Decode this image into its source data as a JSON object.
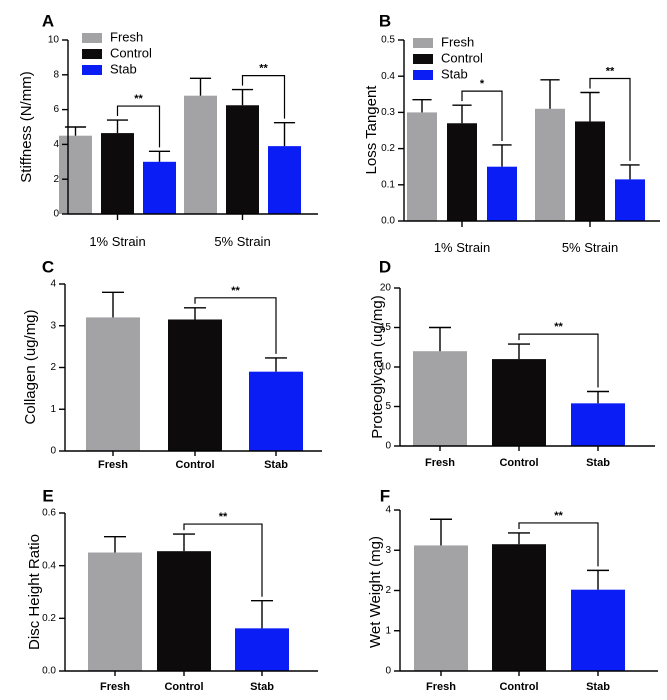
{
  "colors": {
    "fresh": "#a3a3a6",
    "control": "#0d0b0b",
    "stab": "#0a1df5"
  },
  "chart_data": [
    {
      "panel": "A",
      "type": "bar",
      "ylabel": "Stiffness (N/mm)",
      "xlabel": "",
      "ylim": [
        0,
        10
      ],
      "yticks": [
        0,
        2,
        4,
        6,
        8,
        10
      ],
      "categories": [
        "1% Strain",
        "5% Strain"
      ],
      "series": [
        {
          "name": "Fresh",
          "color_key": "fresh",
          "values": [
            4.5,
            6.8
          ],
          "errors": [
            0.5,
            1.0
          ]
        },
        {
          "name": "Control",
          "color_key": "control",
          "values": [
            4.65,
            6.25
          ],
          "errors": [
            0.75,
            0.9
          ]
        },
        {
          "name": "Stab",
          "color_key": "stab",
          "values": [
            3.0,
            3.9
          ],
          "errors": [
            0.6,
            1.35
          ]
        }
      ],
      "legend": [
        "Fresh",
        "Control",
        "Stab"
      ],
      "significance": [
        {
          "category": 0,
          "from": "Control",
          "to": "Stab",
          "label": "**"
        },
        {
          "category": 1,
          "from": "Control",
          "to": "Stab",
          "label": "**"
        }
      ]
    },
    {
      "panel": "B",
      "type": "bar",
      "ylabel": "Loss Tangent",
      "xlabel": "",
      "ylim": [
        0,
        0.5
      ],
      "yticks": [
        0.0,
        0.1,
        0.2,
        0.3,
        0.4,
        0.5
      ],
      "yticklabels": [
        "0.0",
        "0.1",
        "0.2",
        "0.3",
        "0.4",
        "0.5"
      ],
      "categories": [
        "1% Strain",
        "5% Strain"
      ],
      "series": [
        {
          "name": "Fresh",
          "color_key": "fresh",
          "values": [
            0.3,
            0.31
          ],
          "errors": [
            0.035,
            0.08
          ]
        },
        {
          "name": "Control",
          "color_key": "control",
          "values": [
            0.27,
            0.275
          ],
          "errors": [
            0.05,
            0.08
          ]
        },
        {
          "name": "Stab",
          "color_key": "stab",
          "values": [
            0.15,
            0.115
          ],
          "errors": [
            0.06,
            0.04
          ]
        }
      ],
      "legend": [
        "Fresh",
        "Control",
        "Stab"
      ],
      "significance": [
        {
          "category": 0,
          "from": "Control",
          "to": "Stab",
          "label": "*"
        },
        {
          "category": 1,
          "from": "Control",
          "to": "Stab",
          "label": "**"
        }
      ]
    },
    {
      "panel": "C",
      "type": "bar",
      "ylabel": "Collagen (ug/mg)",
      "xlabel": "",
      "ylim": [
        0,
        4
      ],
      "yticks": [
        0,
        1,
        2,
        3,
        4
      ],
      "categories": [
        "Fresh",
        "Control",
        "Stab"
      ],
      "color_keys": [
        "fresh",
        "control",
        "stab"
      ],
      "values": [
        3.2,
        3.15,
        1.9
      ],
      "errors": [
        0.6,
        0.28,
        0.33
      ],
      "significance": [
        {
          "from": 1,
          "to": 2,
          "label": "**"
        }
      ]
    },
    {
      "panel": "D",
      "type": "bar",
      "ylabel": "Proteoglycan (ug/mg)",
      "xlabel": "",
      "ylim": [
        0,
        20
      ],
      "yticks": [
        0,
        5,
        10,
        15,
        20
      ],
      "categories": [
        "Fresh",
        "Control",
        "Stab"
      ],
      "color_keys": [
        "fresh",
        "control",
        "stab"
      ],
      "values": [
        12.0,
        11.0,
        5.4
      ],
      "errors": [
        3.0,
        1.9,
        1.5
      ],
      "significance": [
        {
          "from": 1,
          "to": 2,
          "label": "**"
        }
      ]
    },
    {
      "panel": "E",
      "type": "bar",
      "ylabel": "Disc Height Ratio",
      "xlabel": "",
      "ylim": [
        0,
        0.6
      ],
      "yticks": [
        0.0,
        0.2,
        0.4,
        0.6
      ],
      "yticklabels": [
        "0.0",
        "0.2",
        "0.4",
        "0.6"
      ],
      "categories": [
        "Fresh",
        "Control",
        "Stab"
      ],
      "color_keys": [
        "fresh",
        "control",
        "stab"
      ],
      "values": [
        0.45,
        0.455,
        0.162
      ],
      "errors": [
        0.06,
        0.065,
        0.105
      ],
      "significance": [
        {
          "from": 1,
          "to": 2,
          "label": "**"
        }
      ]
    },
    {
      "panel": "F",
      "type": "bar",
      "ylabel": "Wet Weight (mg)",
      "xlabel": "",
      "ylim": [
        0,
        4
      ],
      "yticks": [
        0,
        1,
        2,
        3,
        4
      ],
      "categories": [
        "Fresh",
        "Control",
        "Stab"
      ],
      "color_keys": [
        "fresh",
        "control",
        "stab"
      ],
      "values": [
        3.12,
        3.15,
        2.02
      ],
      "errors": [
        0.65,
        0.28,
        0.48
      ],
      "significance": [
        {
          "from": 1,
          "to": 2,
          "label": "**"
        }
      ]
    }
  ]
}
